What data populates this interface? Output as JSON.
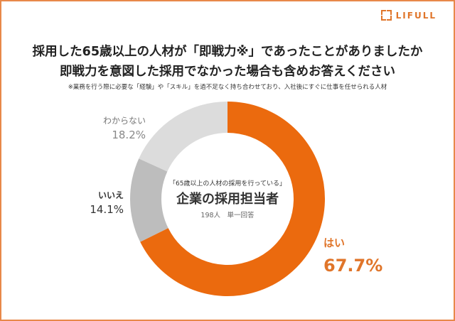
{
  "brand": {
    "logo_text": "LIFULL",
    "accent_color": "#E0752A"
  },
  "header": {
    "title_line1": "採用した65歳以上の人材が「即戦力※」であったことがありましたか",
    "title_line2": "即戦力を意図した採用でなかった場合も含めお答えください",
    "footnote": "※業務を行う際に必要な「経験」や「スキル」を過不足なく持ち合わせており、入社後にすぐに仕事を任せられる人材"
  },
  "center": {
    "line1": "「65歳以上の人材の採用を行っている」",
    "line2": "企業の採用担当者",
    "line3": "198人　単一回答"
  },
  "labels": {
    "wakaranai": {
      "label": "わからない",
      "value": "18.2%"
    },
    "iie": {
      "label": "いいえ",
      "value": "14.1%"
    },
    "hai": {
      "label": "はい",
      "value": "67.7%"
    }
  },
  "chart_data": {
    "type": "pie",
    "subtype": "donut",
    "title": "採用した65歳以上の人材が「即戦力※」であったことがありましたか 即戦力を意図した採用でなかった場合も含めお答えください",
    "categories": [
      "はい",
      "いいえ",
      "わからない"
    ],
    "values": [
      67.7,
      14.1,
      18.2
    ],
    "colors": [
      "#EB6A0E",
      "#BDBDBD",
      "#DCDCDC"
    ],
    "unit": "%",
    "sample": "198人 単一回答",
    "respondents": "「65歳以上の人材の採用を行っている」企業の採用担当者",
    "start_angle": "12 o'clock, clockwise"
  }
}
